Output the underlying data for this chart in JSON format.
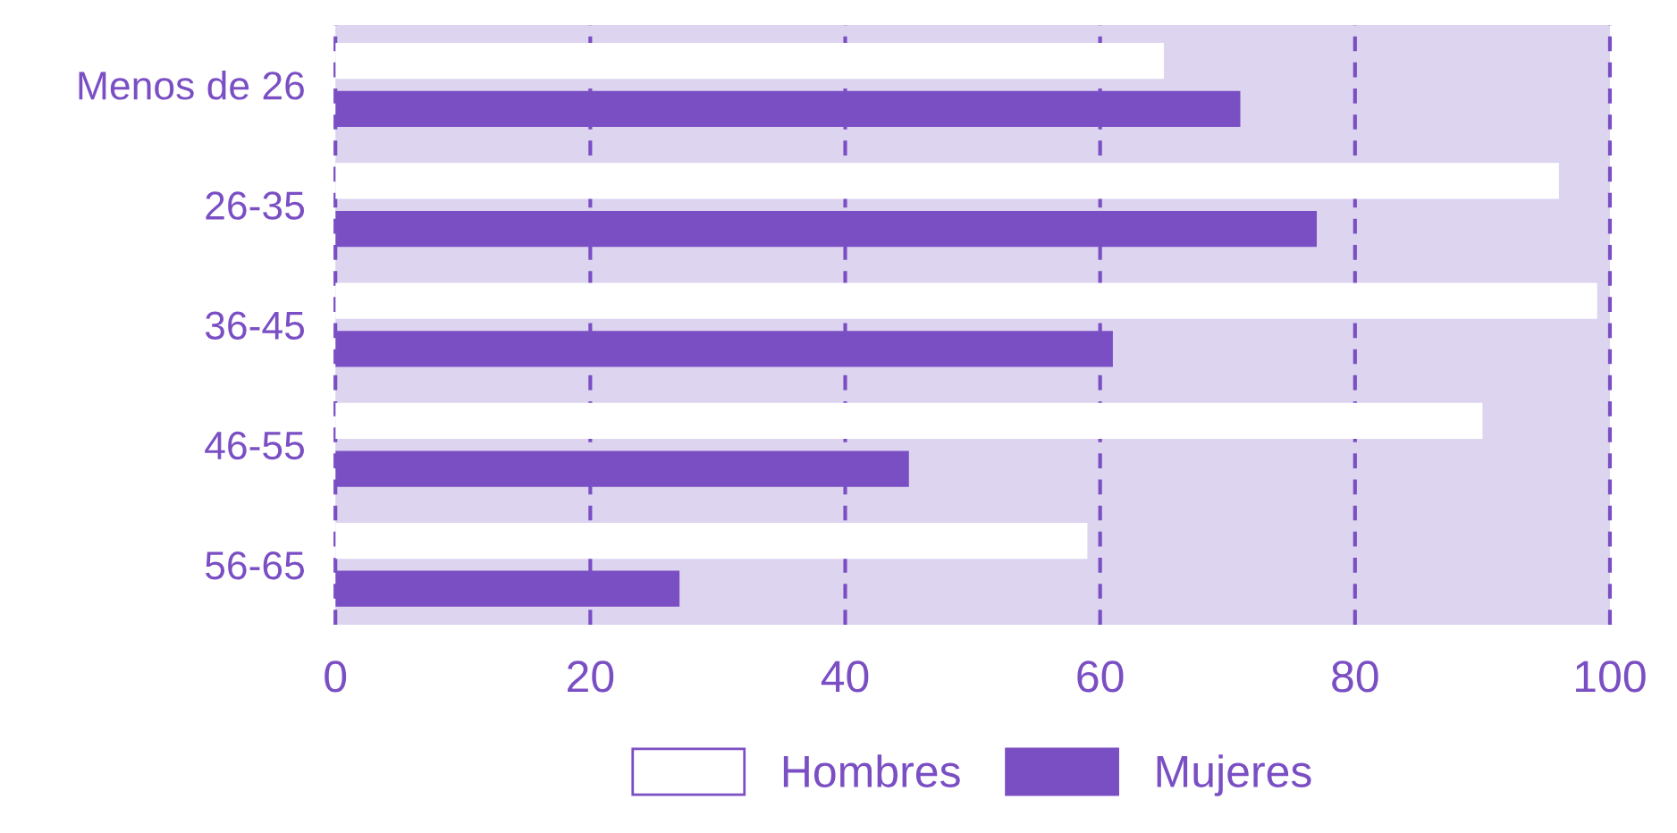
{
  "chart_data": {
    "type": "bar",
    "orientation": "horizontal",
    "categories": [
      "Menos de 26",
      "26-35",
      "36-45",
      "46-55",
      "56-65"
    ],
    "series": [
      {
        "name": "Hombres",
        "color": "#ffffff",
        "values": [
          65,
          96,
          99,
          90,
          59
        ]
      },
      {
        "name": "Mujeres",
        "color": "#7b4fc4",
        "values": [
          71,
          77,
          61,
          45,
          27
        ]
      }
    ],
    "xlim": [
      0,
      100
    ],
    "xticks": [
      0,
      20,
      40,
      60,
      80,
      100
    ],
    "grid": "x",
    "legend": "bottom"
  }
}
